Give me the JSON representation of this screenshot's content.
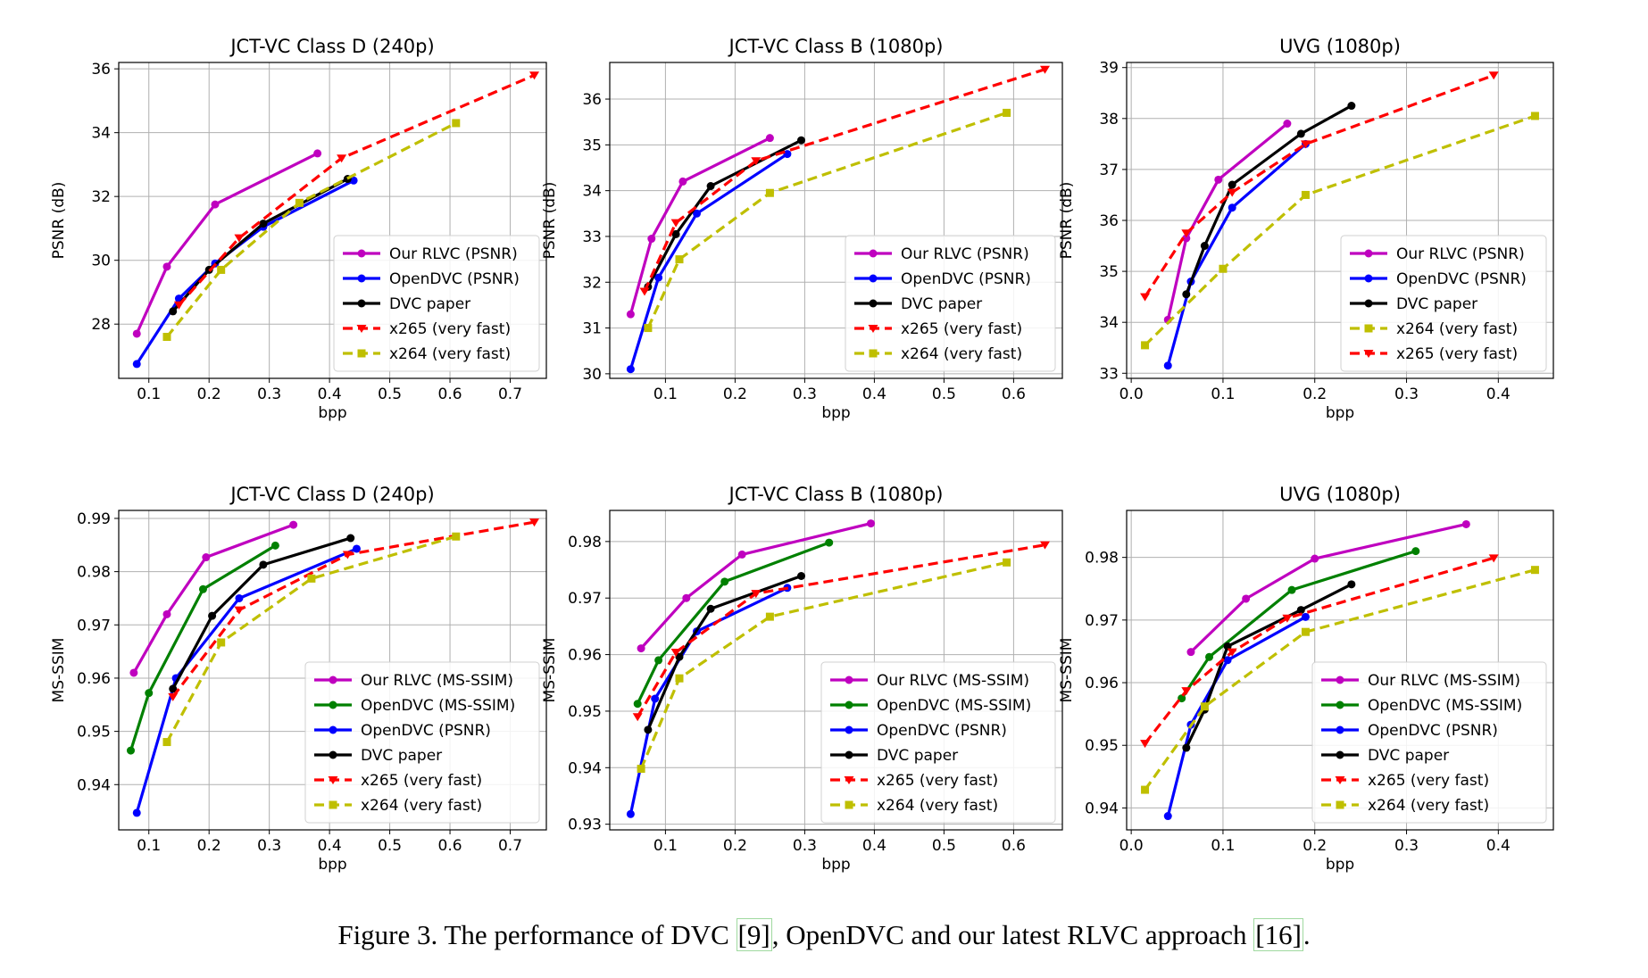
{
  "caption": {
    "prefix": "Figure 3. The performance of DVC ",
    "ref1": "[9]",
    "middle": ", OpenDVC and our latest RLVC approach ",
    "ref2": "[16]",
    "suffix": "."
  },
  "colors": {
    "rlvc": "#bf00bf",
    "opendvc_psnr": "#0000ff",
    "opendvc_msssim": "#008000",
    "dvc": "#000000",
    "x265": "#ff0000",
    "x264": "#bfbf00"
  },
  "chart_data": [
    {
      "type": "line",
      "title": "JCT-VC Class D (240p)",
      "xlabel": "bpp",
      "ylabel": "PSNR (dB)",
      "xlim": [
        0.05,
        0.76
      ],
      "ylim": [
        26.3,
        36.2
      ],
      "xticks": [
        "0.1",
        "0.2",
        "0.3",
        "0.4",
        "0.5",
        "0.6",
        "0.7"
      ],
      "yticks": [
        "28",
        "30",
        "32",
        "34",
        "36"
      ],
      "legend_position": "lower-right",
      "series": [
        {
          "name": "Our RLVC (PSNR)",
          "color_key": "rlvc",
          "style": "solid",
          "marker": "circle",
          "x": [
            0.08,
            0.13,
            0.21,
            0.38
          ],
          "y": [
            27.7,
            29.8,
            31.75,
            33.35
          ]
        },
        {
          "name": "OpenDVC (PSNR)",
          "color_key": "opendvc_psnr",
          "style": "solid",
          "marker": "circle",
          "x": [
            0.08,
            0.15,
            0.21,
            0.29,
            0.44
          ],
          "y": [
            26.75,
            28.8,
            29.9,
            31.05,
            32.5
          ]
        },
        {
          "name": "DVC paper",
          "color_key": "dvc",
          "style": "solid",
          "marker": "circle",
          "x": [
            0.14,
            0.2,
            0.29,
            0.43
          ],
          "y": [
            28.4,
            29.7,
            31.15,
            32.55
          ]
        },
        {
          "name": "x265 (very fast)",
          "color_key": "x265",
          "style": "dashed",
          "marker": "triangle",
          "x": [
            0.15,
            0.25,
            0.42,
            0.74
          ],
          "y": [
            28.6,
            30.7,
            33.2,
            35.8
          ]
        },
        {
          "name": "x264 (very fast)",
          "color_key": "x264",
          "style": "dashed",
          "marker": "square",
          "x": [
            0.13,
            0.22,
            0.35,
            0.61
          ],
          "y": [
            27.6,
            29.7,
            31.8,
            34.3
          ]
        }
      ]
    },
    {
      "type": "line",
      "title": "JCT-VC Class B (1080p)",
      "xlabel": "bpp",
      "ylabel": "PSNR (dB)",
      "xlim": [
        0.02,
        0.67
      ],
      "ylim": [
        29.9,
        36.8
      ],
      "xticks": [
        "0.1",
        "0.2",
        "0.3",
        "0.4",
        "0.5",
        "0.6"
      ],
      "yticks": [
        "30",
        "31",
        "32",
        "33",
        "34",
        "35",
        "36"
      ],
      "legend_position": "lower-right",
      "series": [
        {
          "name": "Our RLVC (PSNR)",
          "color_key": "rlvc",
          "style": "solid",
          "marker": "circle",
          "x": [
            0.05,
            0.08,
            0.125,
            0.25
          ],
          "y": [
            31.3,
            32.95,
            34.2,
            35.15
          ]
        },
        {
          "name": "OpenDVC (PSNR)",
          "color_key": "opendvc_psnr",
          "style": "solid",
          "marker": "circle",
          "x": [
            0.05,
            0.09,
            0.145,
            0.275
          ],
          "y": [
            30.1,
            32.1,
            33.5,
            34.8
          ]
        },
        {
          "name": "DVC paper",
          "color_key": "dvc",
          "style": "solid",
          "marker": "circle",
          "x": [
            0.075,
            0.115,
            0.165,
            0.295
          ],
          "y": [
            31.9,
            33.05,
            34.1,
            35.1
          ]
        },
        {
          "name": "x265 (very fast)",
          "color_key": "x265",
          "style": "dashed",
          "marker": "triangle",
          "x": [
            0.07,
            0.115,
            0.23,
            0.645
          ],
          "y": [
            31.8,
            33.3,
            34.65,
            36.65
          ]
        },
        {
          "name": "x264 (very fast)",
          "color_key": "x264",
          "style": "dashed",
          "marker": "square",
          "x": [
            0.075,
            0.12,
            0.25,
            0.59
          ],
          "y": [
            31.0,
            32.5,
            33.95,
            35.7
          ]
        }
      ]
    },
    {
      "type": "line",
      "title": "UVG (1080p)",
      "xlabel": "bpp",
      "ylabel": "PSNR (dB)",
      "xlim": [
        -0.005,
        0.46
      ],
      "ylim": [
        32.9,
        39.1
      ],
      "xticks": [
        "0.0",
        "0.1",
        "0.2",
        "0.3",
        "0.4"
      ],
      "yticks": [
        "33",
        "34",
        "35",
        "36",
        "37",
        "38",
        "39"
      ],
      "legend_position": "lower-right",
      "series": [
        {
          "name": "Our RLVC (PSNR)",
          "color_key": "rlvc",
          "style": "solid",
          "marker": "circle",
          "x": [
            0.04,
            0.06,
            0.095,
            0.17
          ],
          "y": [
            34.05,
            35.65,
            36.8,
            37.9
          ]
        },
        {
          "name": "OpenDVC (PSNR)",
          "color_key": "opendvc_psnr",
          "style": "solid",
          "marker": "circle",
          "x": [
            0.04,
            0.065,
            0.11,
            0.19
          ],
          "y": [
            33.15,
            34.8,
            36.25,
            37.5
          ]
        },
        {
          "name": "DVC paper",
          "color_key": "dvc",
          "style": "solid",
          "marker": "circle",
          "x": [
            0.06,
            0.08,
            0.11,
            0.185,
            0.24
          ],
          "y": [
            34.55,
            35.5,
            36.7,
            37.7,
            38.25
          ]
        },
        {
          "name": "x264 (very fast)",
          "color_key": "x264",
          "style": "dashed",
          "marker": "square",
          "x": [
            0.015,
            0.1,
            0.19,
            0.44
          ],
          "y": [
            33.55,
            35.05,
            36.5,
            38.05
          ]
        },
        {
          "name": "x265 (very fast)",
          "color_key": "x265",
          "style": "dashed",
          "marker": "triangle",
          "x": [
            0.015,
            0.06,
            0.11,
            0.19,
            0.395
          ],
          "y": [
            34.5,
            35.75,
            36.55,
            37.5,
            38.85
          ]
        }
      ]
    },
    {
      "type": "line",
      "title": "JCT-VC Class D (240p)",
      "xlabel": "bpp",
      "ylabel": "MS-SSIM",
      "xlim": [
        0.05,
        0.76
      ],
      "ylim": [
        0.9315,
        0.9915
      ],
      "xticks": [
        "0.1",
        "0.2",
        "0.3",
        "0.4",
        "0.5",
        "0.6",
        "0.7"
      ],
      "yticks": [
        "0.94",
        "0.95",
        "0.96",
        "0.97",
        "0.98",
        "0.99"
      ],
      "legend_position": "lower-right",
      "series": [
        {
          "name": "Our RLVC (MS-SSIM)",
          "color_key": "rlvc",
          "style": "solid",
          "marker": "circle",
          "x": [
            0.075,
            0.13,
            0.195,
            0.34
          ],
          "y": [
            0.961,
            0.972,
            0.9827,
            0.9888
          ]
        },
        {
          "name": "OpenDVC (MS-SSIM)",
          "color_key": "opendvc_msssim",
          "style": "solid",
          "marker": "circle",
          "x": [
            0.07,
            0.1,
            0.19,
            0.31
          ],
          "y": [
            0.9464,
            0.9572,
            0.9767,
            0.9849
          ]
        },
        {
          "name": "OpenDVC (PSNR)",
          "color_key": "opendvc_psnr",
          "style": "solid",
          "marker": "circle",
          "x": [
            0.08,
            0.145,
            0.25,
            0.445
          ],
          "y": [
            0.9347,
            0.96,
            0.975,
            0.9843
          ]
        },
        {
          "name": "DVC paper",
          "color_key": "dvc",
          "style": "solid",
          "marker": "circle",
          "x": [
            0.14,
            0.205,
            0.29,
            0.435
          ],
          "y": [
            0.958,
            0.9717,
            0.9813,
            0.9863
          ]
        },
        {
          "name": "x265 (very fast)",
          "color_key": "x265",
          "style": "dashed",
          "marker": "triangle",
          "x": [
            0.14,
            0.25,
            0.43,
            0.74
          ],
          "y": [
            0.9565,
            0.9728,
            0.9832,
            0.9893
          ]
        },
        {
          "name": "x264 (very fast)",
          "color_key": "x264",
          "style": "dashed",
          "marker": "square",
          "x": [
            0.13,
            0.22,
            0.37,
            0.61
          ],
          "y": [
            0.948,
            0.9667,
            0.9787,
            0.9866
          ]
        }
      ]
    },
    {
      "type": "line",
      "title": "JCT-VC Class B (1080p)",
      "xlabel": "bpp",
      "ylabel": "MS-SSIM",
      "xlim": [
        0.02,
        0.67
      ],
      "ylim": [
        0.929,
        0.9855
      ],
      "xticks": [
        "0.1",
        "0.2",
        "0.3",
        "0.4",
        "0.5",
        "0.6"
      ],
      "yticks": [
        "0.93",
        "0.94",
        "0.95",
        "0.96",
        "0.97",
        "0.98"
      ],
      "legend_position": "lower-right",
      "series": [
        {
          "name": "Our RLVC (MS-SSIM)",
          "color_key": "rlvc",
          "style": "solid",
          "marker": "circle",
          "x": [
            0.065,
            0.13,
            0.21,
            0.395
          ],
          "y": [
            0.9611,
            0.97,
            0.9777,
            0.9832
          ]
        },
        {
          "name": "OpenDVC (MS-SSIM)",
          "color_key": "opendvc_msssim",
          "style": "solid",
          "marker": "circle",
          "x": [
            0.06,
            0.09,
            0.185,
            0.335
          ],
          "y": [
            0.9513,
            0.959,
            0.9729,
            0.9798
          ]
        },
        {
          "name": "OpenDVC (PSNR)",
          "color_key": "opendvc_psnr",
          "style": "solid",
          "marker": "circle",
          "x": [
            0.05,
            0.085,
            0.145,
            0.275
          ],
          "y": [
            0.9318,
            0.9522,
            0.9641,
            0.9718
          ]
        },
        {
          "name": "DVC paper",
          "color_key": "dvc",
          "style": "solid",
          "marker": "circle",
          "x": [
            0.075,
            0.12,
            0.165,
            0.295
          ],
          "y": [
            0.9467,
            0.9596,
            0.9681,
            0.9739
          ]
        },
        {
          "name": "x265 (very fast)",
          "color_key": "x265",
          "style": "dashed",
          "marker": "triangle",
          "x": [
            0.06,
            0.115,
            0.23,
            0.645
          ],
          "y": [
            0.949,
            0.9604,
            0.9708,
            0.9794
          ]
        },
        {
          "name": "x264 (very fast)",
          "color_key": "x264",
          "style": "dashed",
          "marker": "square",
          "x": [
            0.065,
            0.12,
            0.25,
            0.59
          ],
          "y": [
            0.9398,
            0.9558,
            0.9667,
            0.9763
          ]
        }
      ]
    },
    {
      "type": "line",
      "title": "UVG (1080p)",
      "xlabel": "bpp",
      "ylabel": "MS-SSIM",
      "xlim": [
        -0.005,
        0.46
      ],
      "ylim": [
        0.9365,
        0.9875
      ],
      "xticks": [
        "0.0",
        "0.1",
        "0.2",
        "0.3",
        "0.4"
      ],
      "yticks": [
        "0.94",
        "0.95",
        "0.96",
        "0.97",
        "0.98"
      ],
      "legend_position": "lower-right",
      "series": [
        {
          "name": "Our RLVC (MS-SSIM)",
          "color_key": "rlvc",
          "style": "solid",
          "marker": "circle",
          "x": [
            0.065,
            0.125,
            0.2,
            0.365
          ],
          "y": [
            0.9649,
            0.9734,
            0.9798,
            0.9853
          ]
        },
        {
          "name": "OpenDVC (MS-SSIM)",
          "color_key": "opendvc_msssim",
          "style": "solid",
          "marker": "circle",
          "x": [
            0.055,
            0.085,
            0.175,
            0.31
          ],
          "y": [
            0.9575,
            0.9641,
            0.9748,
            0.981
          ]
        },
        {
          "name": "OpenDVC (PSNR)",
          "color_key": "opendvc_psnr",
          "style": "solid",
          "marker": "circle",
          "x": [
            0.04,
            0.065,
            0.105,
            0.19
          ],
          "y": [
            0.9387,
            0.9533,
            0.9636,
            0.9705
          ]
        },
        {
          "name": "DVC paper",
          "color_key": "dvc",
          "style": "solid",
          "marker": "circle",
          "x": [
            0.06,
            0.08,
            0.105,
            0.185,
            0.24
          ],
          "y": [
            0.9496,
            0.9557,
            0.9658,
            0.9716,
            0.9757
          ]
        },
        {
          "name": "x265 (very fast)",
          "color_key": "x265",
          "style": "dashed",
          "marker": "triangle",
          "x": [
            0.015,
            0.06,
            0.11,
            0.17,
            0.395
          ],
          "y": [
            0.9503,
            0.9587,
            0.9649,
            0.9703,
            0.9799
          ]
        },
        {
          "name": "x264 (very fast)",
          "color_key": "x264",
          "style": "dashed",
          "marker": "square",
          "x": [
            0.015,
            0.08,
            0.19,
            0.44
          ],
          "y": [
            0.9429,
            0.9562,
            0.9681,
            0.978
          ]
        }
      ]
    }
  ]
}
